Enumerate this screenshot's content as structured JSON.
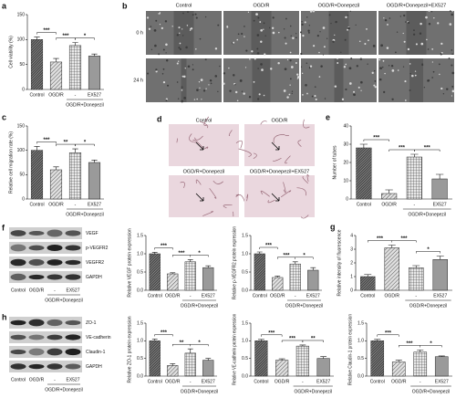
{
  "chart_data": [
    {
      "type": "bar",
      "panel": "a",
      "ylabel": "Cell viability (%)",
      "categories": [
        "Control",
        "OGD/R",
        "-",
        "EX527"
      ],
      "group_label": "OGD/R+Donepezil",
      "values": [
        100,
        55,
        88,
        67
      ],
      "errors": [
        5,
        7,
        6,
        4
      ],
      "colors": [
        "#4a4a4a",
        "#e0e0e0",
        "#e8e8e8",
        "#9a9a9a"
      ],
      "ylim": [
        0,
        150
      ],
      "yticks": [
        0,
        50,
        100,
        150
      ],
      "significance": [
        "***",
        "***",
        "*"
      ]
    },
    {
      "type": "bar",
      "panel": "c",
      "ylabel": "Relative cell migration rate (%)",
      "categories": [
        "Control",
        "OGD/R",
        "-",
        "EX527"
      ],
      "group_label": "OGD/R+Donepezil",
      "values": [
        100,
        60,
        95,
        75
      ],
      "errors": [
        8,
        6,
        8,
        5
      ],
      "colors": [
        "#4a4a4a",
        "#e0e0e0",
        "#e8e8e8",
        "#9a9a9a"
      ],
      "ylim": [
        0,
        150
      ],
      "yticks": [
        0,
        50,
        100,
        150
      ],
      "significance": [
        "***",
        "**",
        "*"
      ]
    },
    {
      "type": "bar",
      "panel": "e",
      "ylabel": "Number of tubes",
      "categories": [
        "Control",
        "OGD/R",
        "-",
        "EX527"
      ],
      "group_label": "OGD/R+Donepezil",
      "values": [
        28,
        3,
        23,
        11
      ],
      "errors": [
        2,
        2,
        1.5,
        2.5
      ],
      "colors": [
        "#4a4a4a",
        "#e0e0e0",
        "#e8e8e8",
        "#9a9a9a"
      ],
      "ylim": [
        0,
        40
      ],
      "yticks": [
        0,
        10,
        20,
        30,
        40
      ],
      "significance": [
        "***",
        "***",
        "***"
      ]
    },
    {
      "type": "bar",
      "ylabel": "Relative VEGF protein expression",
      "categories": [
        "Control",
        "OGD/R",
        "-",
        "EX527"
      ],
      "group_label": "OGD/R+Donepezil",
      "values": [
        1.0,
        0.45,
        0.78,
        0.62
      ],
      "errors": [
        0.04,
        0.03,
        0.06,
        0.05
      ],
      "colors": [
        "#4a4a4a",
        "#e0e0e0",
        "#e8e8e8",
        "#9a9a9a"
      ],
      "ylim": [
        0,
        1.5
      ],
      "yticks": [
        {
          "value": 0,
          "label": "0.0"
        },
        0.5,
        {
          "value": 1,
          "label": "1.0"
        },
        1.5
      ],
      "significance": [
        "***",
        "***",
        "*"
      ]
    },
    {
      "type": "bar",
      "ylabel": "Relative p-VEGFR2 protein expression",
      "categories": [
        "Control",
        "OGD/R",
        "-",
        "EX527"
      ],
      "group_label": "OGD/R+Donepezil",
      "values": [
        1.0,
        0.35,
        0.72,
        0.55
      ],
      "errors": [
        0.05,
        0.04,
        0.06,
        0.07
      ],
      "colors": [
        "#4a4a4a",
        "#e0e0e0",
        "#e8e8e8",
        "#9a9a9a"
      ],
      "ylim": [
        0,
        1.5
      ],
      "yticks": [
        {
          "value": 0,
          "label": "0.0"
        },
        0.5,
        {
          "value": 1,
          "label": "1.0"
        },
        1.5
      ],
      "significance": [
        "***",
        "***",
        "*"
      ]
    },
    {
      "type": "bar",
      "panel": "g",
      "ylabel": "Relative intensity of fluorescence",
      "categories": [
        "Control",
        "OGD/R",
        "-",
        "EX527"
      ],
      "group_label": "OGD/R+Donepezil",
      "values": [
        1.0,
        3.1,
        1.65,
        2.25
      ],
      "errors": [
        0.15,
        0.2,
        0.15,
        0.25
      ],
      "colors": [
        "#4a4a4a",
        "#e0e0e0",
        "#e8e8e8",
        "#9a9a9a"
      ],
      "ylim": [
        0,
        4
      ],
      "yticks": [
        0,
        1,
        2,
        3,
        4
      ],
      "significance": [
        "***",
        "***",
        "*"
      ]
    },
    {
      "type": "bar",
      "ylabel": "Relative ZO-1 protein expression",
      "categories": [
        "Control",
        "OGD/R",
        "-",
        "EX527"
      ],
      "group_label": "OGD/R+Donepezil",
      "values": [
        1.0,
        0.3,
        0.65,
        0.45
      ],
      "errors": [
        0.05,
        0.05,
        0.12,
        0.05
      ],
      "colors": [
        "#4a4a4a",
        "#e0e0e0",
        "#e8e8e8",
        "#9a9a9a"
      ],
      "ylim": [
        0,
        1.5
      ],
      "yticks": [
        {
          "value": 0,
          "label": "0.0"
        },
        0.5,
        {
          "value": 1,
          "label": "1.0"
        },
        1.5
      ],
      "significance": [
        "***",
        "**",
        "*"
      ]
    },
    {
      "type": "bar",
      "ylabel": "Relative VE-cadherin protein expression",
      "categories": [
        "Control",
        "OGD/R",
        "-",
        "EX527"
      ],
      "group_label": "OGD/R+Donepezil",
      "values": [
        1.0,
        0.45,
        0.85,
        0.5
      ],
      "errors": [
        0.04,
        0.04,
        0.03,
        0.05
      ],
      "colors": [
        "#4a4a4a",
        "#e0e0e0",
        "#e8e8e8",
        "#9a9a9a"
      ],
      "ylim": [
        0,
        1.5
      ],
      "yticks": [
        {
          "value": 0,
          "label": "0.0"
        },
        0.5,
        {
          "value": 1,
          "label": "1.0"
        },
        1.5
      ],
      "significance": [
        "***",
        "***",
        "**"
      ]
    },
    {
      "type": "bar",
      "ylabel": "Relative Claudin-1 protein expression",
      "categories": [
        "Control",
        "OGD/R",
        "-",
        "EX527"
      ],
      "group_label": "OGD/R+Donepezil",
      "values": [
        1.0,
        0.4,
        0.68,
        0.55
      ],
      "errors": [
        0.04,
        0.05,
        0.06,
        0.02
      ],
      "colors": [
        "#4a4a4a",
        "#e0e0e0",
        "#e8e8e8",
        "#9a9a9a"
      ],
      "ylim": [
        0,
        1.5
      ],
      "yticks": [
        {
          "value": 0,
          "label": "0.0"
        },
        0.5,
        {
          "value": 1,
          "label": "1.0"
        },
        1.5
      ],
      "significance": [
        "***",
        "***",
        "*"
      ]
    }
  ],
  "figures": [
    {
      "panel": "b",
      "columns": [
        "Control",
        "OGD/R",
        "OGD/R+Donepezil",
        "OGD/R+Donepezil+EX527"
      ],
      "rows": [
        "0 h",
        "24 h"
      ]
    },
    {
      "panel": "d",
      "labels": [
        "Control",
        "OGD/R",
        "OGD/R+Donepezil",
        "OGD/R+Donepezil+EX527"
      ]
    }
  ],
  "blots": [
    {
      "panel": "f",
      "proteins": [
        "VEGF",
        "p-VEGFR2",
        "VEGFR2",
        "GAPDH"
      ],
      "lanes": [
        "Control",
        "OGD/R",
        "-",
        "EX527"
      ],
      "group_label": "OGD/R+Donepezil"
    },
    {
      "panel": "h",
      "proteins": [
        "ZO-1",
        "VE-cadherin",
        "Claudin-1",
        "GAPDH"
      ],
      "lanes": [
        "Control",
        "OGD/R",
        "-",
        "EX527"
      ],
      "group_label": "OGD/R+Donepezil"
    }
  ]
}
